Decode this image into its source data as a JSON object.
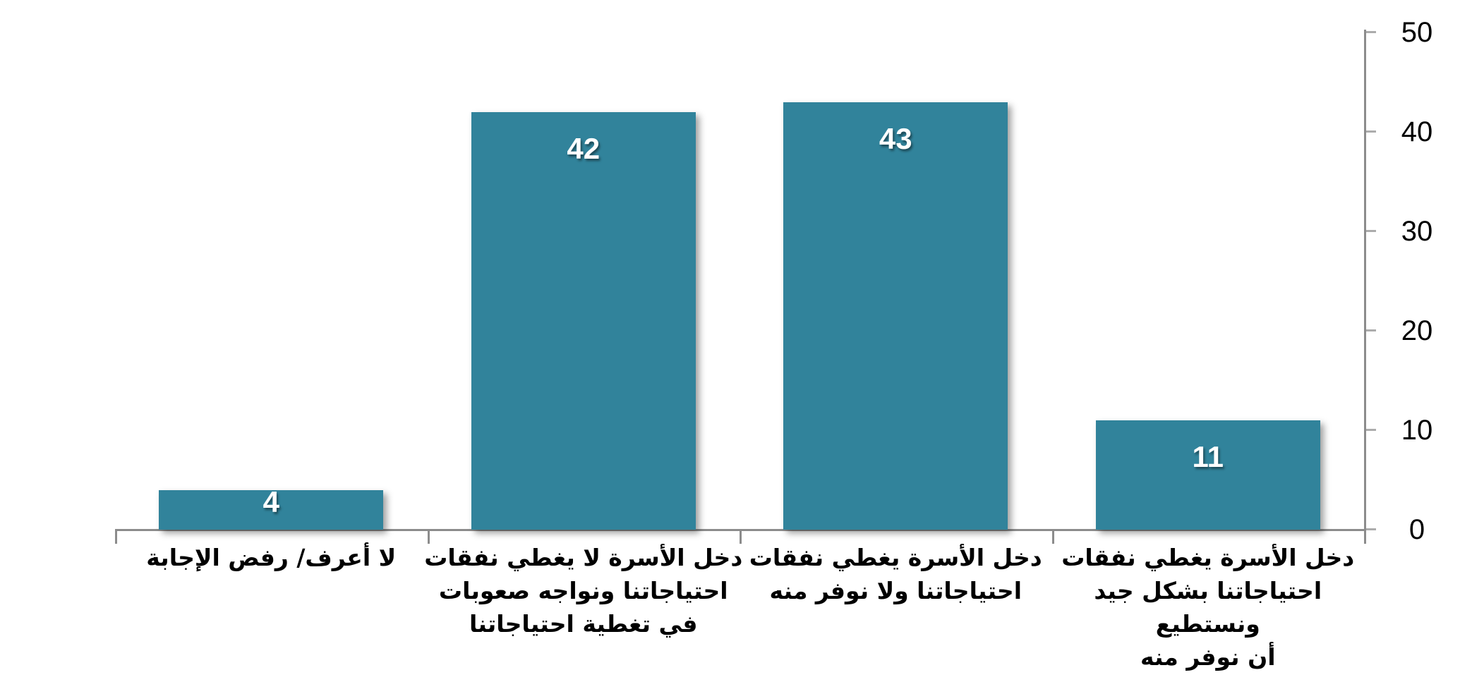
{
  "chart_data": {
    "type": "bar",
    "title": "",
    "direction": "rtl",
    "categories": [
      "لا أعرف/ رفض الإجابة",
      "دخل الأسرة لا يغطي نفقات\nاحتياجاتنا ونواجه صعوبات\nفي تغطية احتياجاتنا",
      "دخل الأسرة يغطي نفقات\nاحتياجاتنا ولا نوفر منه",
      "دخل الأسرة يغطي نفقات\nاحتياجاتنا بشكل جيد ونستطيع\nأن نوفر منه"
    ],
    "values": [
      4,
      42,
      43,
      11
    ],
    "value_labels": [
      "4",
      "42",
      "43",
      "11"
    ],
    "ylim": [
      0,
      50
    ],
    "yticks": [
      0,
      10,
      20,
      30,
      40,
      50
    ],
    "axis_side": "right",
    "grid": false,
    "legend": false,
    "bar_color": "#31839B",
    "value_label_color": "#FFFFFF",
    "axis_color": "#8C8C8C",
    "tick_color": "#ACACAC",
    "text_color": "#000000",
    "background_color": "#FFFFFF"
  }
}
